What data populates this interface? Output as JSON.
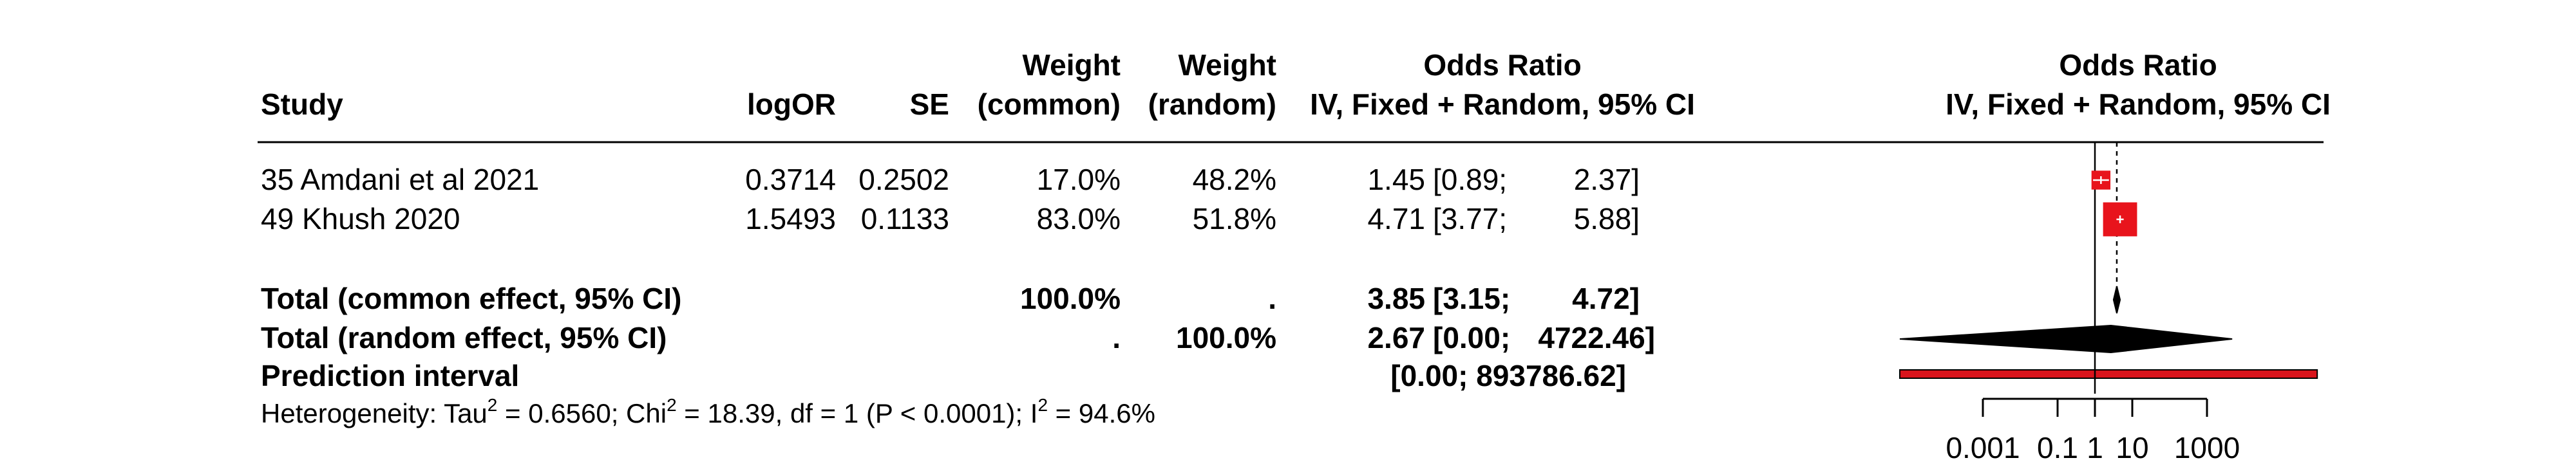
{
  "header": {
    "study": "Study",
    "logor": "logOR",
    "se": "SE",
    "weight_common_1": "Weight",
    "weight_common_2": "(common)",
    "weight_random_1": "Weight",
    "weight_random_2": "(random)",
    "or_text_1": "Odds Ratio",
    "or_text_2": "IV, Fixed + Random, 95% CI",
    "or_plot_1": "Odds Ratio",
    "or_plot_2": "IV, Fixed + Random, 95% CI"
  },
  "studies": [
    {
      "study": "35 Amdani et al 2021",
      "logor": "0.3714",
      "se": "0.2502",
      "w_common": "17.0%",
      "w_random": "48.2%",
      "or": "1.45",
      "ci_text": "[0.89;",
      "ci_upper_text": "2.37]"
    },
    {
      "study": "49 Khush 2020",
      "logor": "1.5493",
      "se": "0.1133",
      "w_common": "83.0%",
      "w_random": "51.8%",
      "or": "4.71",
      "ci_text": "[3.77;",
      "ci_upper_text": "5.88]"
    }
  ],
  "summary": {
    "common_label": "Total (common effect, 95% CI)",
    "common_w_common": "100.0%",
    "common_w_random": ".",
    "common_or": "3.85",
    "common_ci": "[3.15;",
    "common_ci_upper": "4.72]",
    "random_label": "Total (random effect, 95% CI)",
    "random_w_common": ".",
    "random_w_random": "100.0%",
    "random_or": "2.67",
    "random_ci": "[0.00;",
    "random_ci_upper": "4722.46]",
    "pi_label": "Prediction interval",
    "pi_ci": "[0.00; 893786.62]"
  },
  "heterogeneity": {
    "p1": "Heterogeneity: Tau",
    "sup1": "2",
    "p2": " = 0.6560; Chi",
    "sup2": "2",
    "p3": " = 18.39, df = 1 (P < 0.0001); I",
    "sup3": "2",
    "p4": " = 94.6%"
  },
  "colors": {
    "square": "#e8141c",
    "diamond": "#000000",
    "prediction_bar": "#d9141c"
  },
  "chart_data": {
    "type": "forest",
    "x_scale": "log",
    "x_ticks": [
      0.001,
      0.1,
      1,
      10,
      1000
    ],
    "x_tick_labels": [
      "0.001",
      "0.1",
      "1",
      "10",
      "1000"
    ],
    "reference_line": 1,
    "studies": [
      {
        "name": "35 Amdani et al 2021",
        "or": 1.45,
        "lower": 0.89,
        "upper": 2.37,
        "weight_common": 17.0
      },
      {
        "name": "49 Khush 2020",
        "or": 4.71,
        "lower": 3.77,
        "upper": 5.88,
        "weight_common": 83.0
      }
    ],
    "common_effect": {
      "or": 3.85,
      "lower": 3.15,
      "upper": 4.72
    },
    "random_effect": {
      "or": 2.67,
      "lower": 0.0,
      "upper": 4722.46
    },
    "prediction_interval": {
      "lower": 0.0,
      "upper": 893786.62
    }
  }
}
